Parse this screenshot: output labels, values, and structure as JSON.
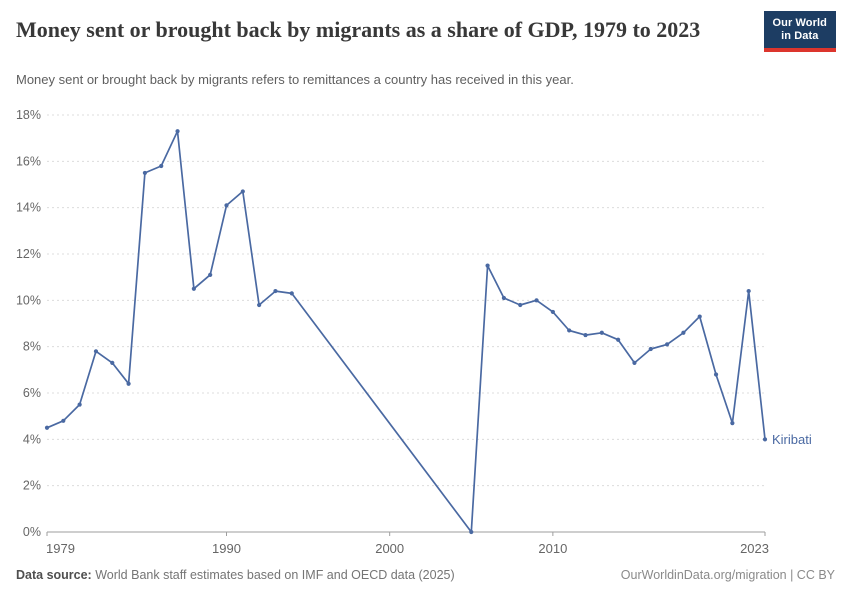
{
  "header": {
    "title": "Money sent or brought back by migrants as a share of GDP, 1979 to 2023",
    "subtitle": "Money sent or brought back by migrants refers to remittances a country has received in this year.",
    "logo": {
      "line1": "Our World",
      "line2": "in Data",
      "bg_color": "#1d3d63",
      "accent_color": "#dc352d"
    }
  },
  "chart_data": {
    "type": "line",
    "title": "Money sent or brought back by migrants as a share of GDP, 1979 to 2023",
    "xlabel": "",
    "ylabel": "",
    "ylim": [
      0,
      18
    ],
    "ytick_step": 2,
    "ytick_suffix": "%",
    "xlim": [
      1979,
      2023
    ],
    "xticks": [
      1979,
      1990,
      2000,
      2010,
      2023
    ],
    "grid": "dashed-horizontal",
    "legend_position": "end-of-line",
    "line_color": "#4a69a2",
    "grid_color": "#dcdcdc",
    "axis_color": "#9e9e9e",
    "tick_label_color": "#666666",
    "series": [
      {
        "name": "Kiribati",
        "points": [
          [
            1979,
            4.5
          ],
          [
            1980,
            4.8
          ],
          [
            1981,
            5.5
          ],
          [
            1982,
            7.8
          ],
          [
            1983,
            7.3
          ],
          [
            1984,
            6.4
          ],
          [
            1985,
            15.5
          ],
          [
            1986,
            15.8
          ],
          [
            1987,
            17.3
          ],
          [
            1988,
            10.5
          ],
          [
            1989,
            11.1
          ],
          [
            1990,
            14.1
          ],
          [
            1991,
            14.7
          ],
          [
            1992,
            9.8
          ],
          [
            1993,
            10.4
          ],
          [
            1994,
            10.3
          ],
          [
            2005,
            0.0
          ],
          [
            2006,
            11.5
          ],
          [
            2007,
            10.1
          ],
          [
            2008,
            9.8
          ],
          [
            2009,
            10.0
          ],
          [
            2010,
            9.5
          ],
          [
            2011,
            8.7
          ],
          [
            2012,
            8.5
          ],
          [
            2013,
            8.6
          ],
          [
            2014,
            8.3
          ],
          [
            2015,
            7.3
          ],
          [
            2016,
            7.9
          ],
          [
            2017,
            8.1
          ],
          [
            2018,
            8.6
          ],
          [
            2019,
            9.3
          ],
          [
            2020,
            6.8
          ],
          [
            2021,
            4.7
          ],
          [
            2022,
            10.4
          ],
          [
            2023,
            4.0
          ]
        ]
      }
    ]
  },
  "footer": {
    "source_label": "Data source:",
    "source_text": "World Bank staff estimates based on IMF and OECD data (2025)",
    "credit": "OurWorldinData.org/migration | CC BY"
  }
}
